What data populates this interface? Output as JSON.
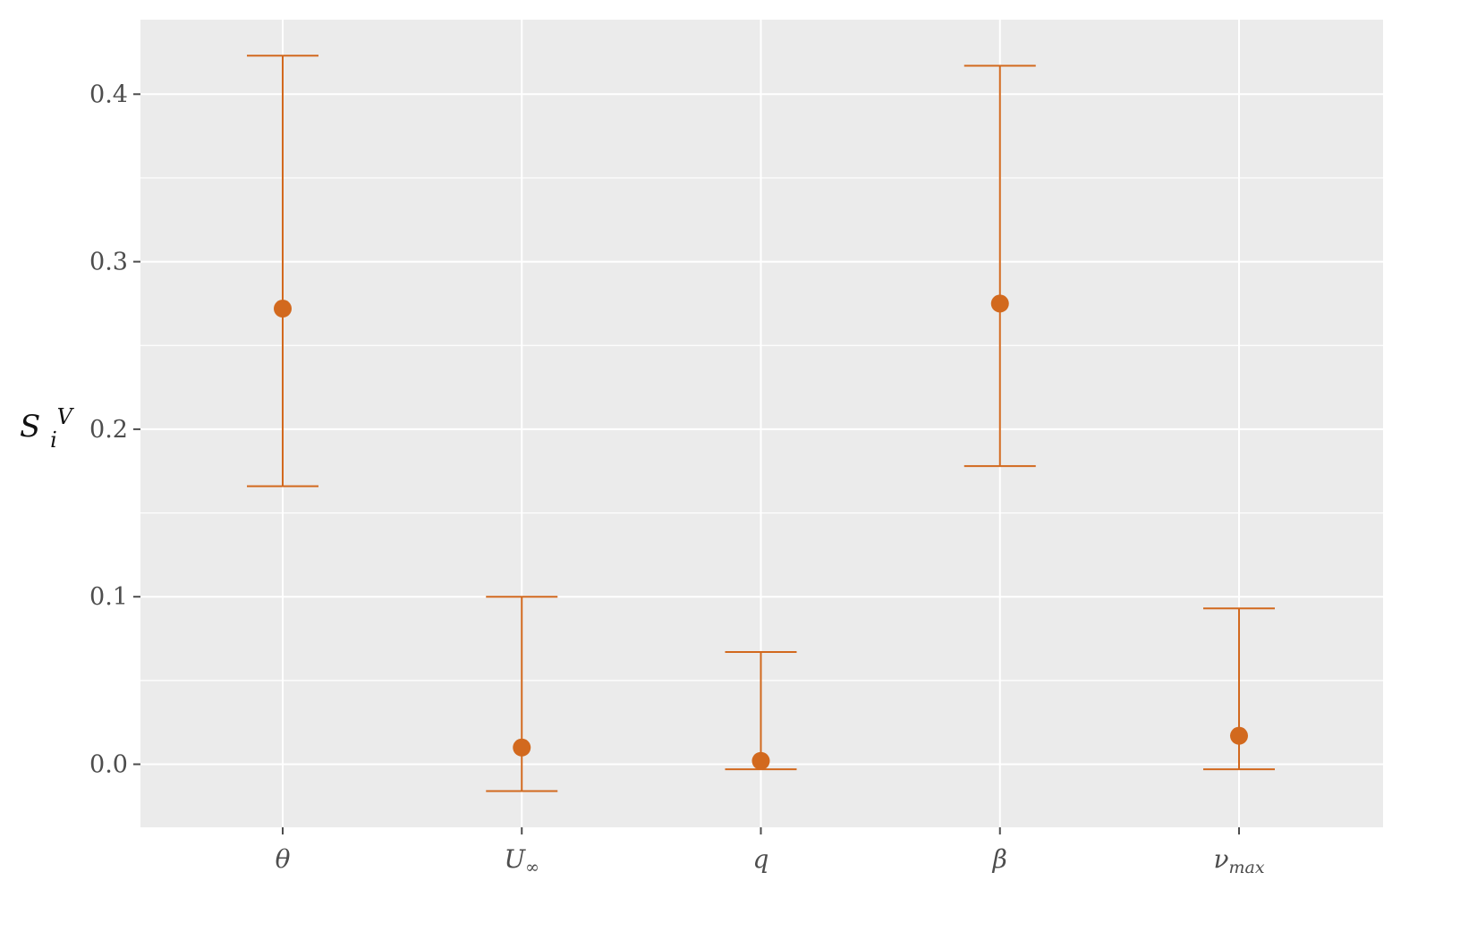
{
  "chart_data": {
    "type": "scatter",
    "subtype": "point-with-errorbars",
    "ylabel": {
      "base": "S",
      "sub": "i",
      "sup": "V"
    },
    "xlabel": "",
    "categories": [
      {
        "base": "θ",
        "sub": ""
      },
      {
        "base": "U",
        "sub": "∞"
      },
      {
        "base": "q",
        "sub": ""
      },
      {
        "base": "β",
        "sub": ""
      },
      {
        "base": "ν",
        "sub": "max"
      }
    ],
    "values": [
      0.272,
      0.01,
      0.002,
      0.275,
      0.017
    ],
    "lower": [
      0.166,
      -0.016,
      -0.003,
      0.178,
      -0.003
    ],
    "upper": [
      0.423,
      0.1,
      0.067,
      0.417,
      0.093
    ],
    "yticks": [
      0.0,
      0.1,
      0.2,
      0.3,
      0.4
    ],
    "ytick_labels": [
      "0.0",
      "0.1",
      "0.2",
      "0.3",
      "0.4"
    ],
    "ylim": [
      -0.038,
      0.445
    ],
    "grid": true,
    "legend": "none",
    "colors": {
      "series": "#d2691e",
      "panel": "#ebebeb",
      "grid": "#ffffff",
      "ticks": "#4d4d4d"
    }
  }
}
